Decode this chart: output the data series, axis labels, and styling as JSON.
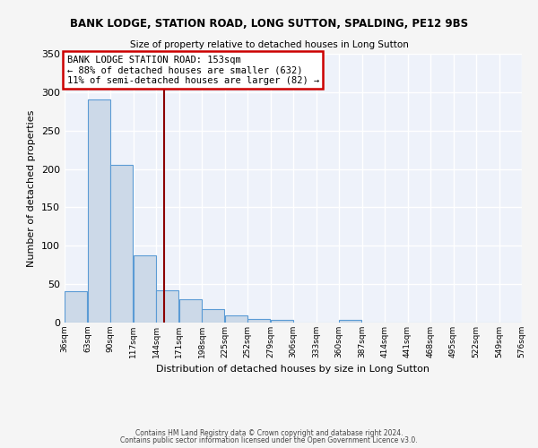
{
  "title": "BANK LODGE, STATION ROAD, LONG SUTTON, SPALDING, PE12 9BS",
  "subtitle": "Size of property relative to detached houses in Long Sutton",
  "xlabel": "Distribution of detached houses by size in Long Sutton",
  "ylabel": "Number of detached properties",
  "bar_values": [
    41,
    290,
    205,
    87,
    42,
    30,
    17,
    9,
    5,
    4,
    0,
    0,
    3,
    0,
    0,
    0,
    0,
    0,
    0,
    0
  ],
  "bin_edges": [
    36,
    63,
    90,
    117,
    144,
    171,
    198,
    225,
    252,
    279,
    306,
    333,
    360,
    387,
    414,
    441,
    468,
    495,
    522,
    549,
    576
  ],
  "tick_labels": [
    "36sqm",
    "63sqm",
    "90sqm",
    "117sqm",
    "144sqm",
    "171sqm",
    "198sqm",
    "225sqm",
    "252sqm",
    "279sqm",
    "306sqm",
    "333sqm",
    "360sqm",
    "387sqm",
    "414sqm",
    "441sqm",
    "468sqm",
    "495sqm",
    "522sqm",
    "549sqm",
    "576sqm"
  ],
  "ylim": [
    0,
    350
  ],
  "yticks": [
    0,
    50,
    100,
    150,
    200,
    250,
    300,
    350
  ],
  "bar_color": "#ccd9e8",
  "bar_edge_color": "#5b9bd5",
  "bg_color": "#eef2fa",
  "grid_color": "#ffffff",
  "vline_x": 153,
  "vline_color": "#8b0000",
  "annotation_line1": "BANK LODGE STATION ROAD: 153sqm",
  "annotation_line2": "← 88% of detached houses are smaller (632)",
  "annotation_line3": "11% of semi-detached houses are larger (82) →",
  "annotation_box_color": "#cc0000",
  "footer1": "Contains HM Land Registry data © Crown copyright and database right 2024.",
  "footer2": "Contains public sector information licensed under the Open Government Licence v3.0."
}
